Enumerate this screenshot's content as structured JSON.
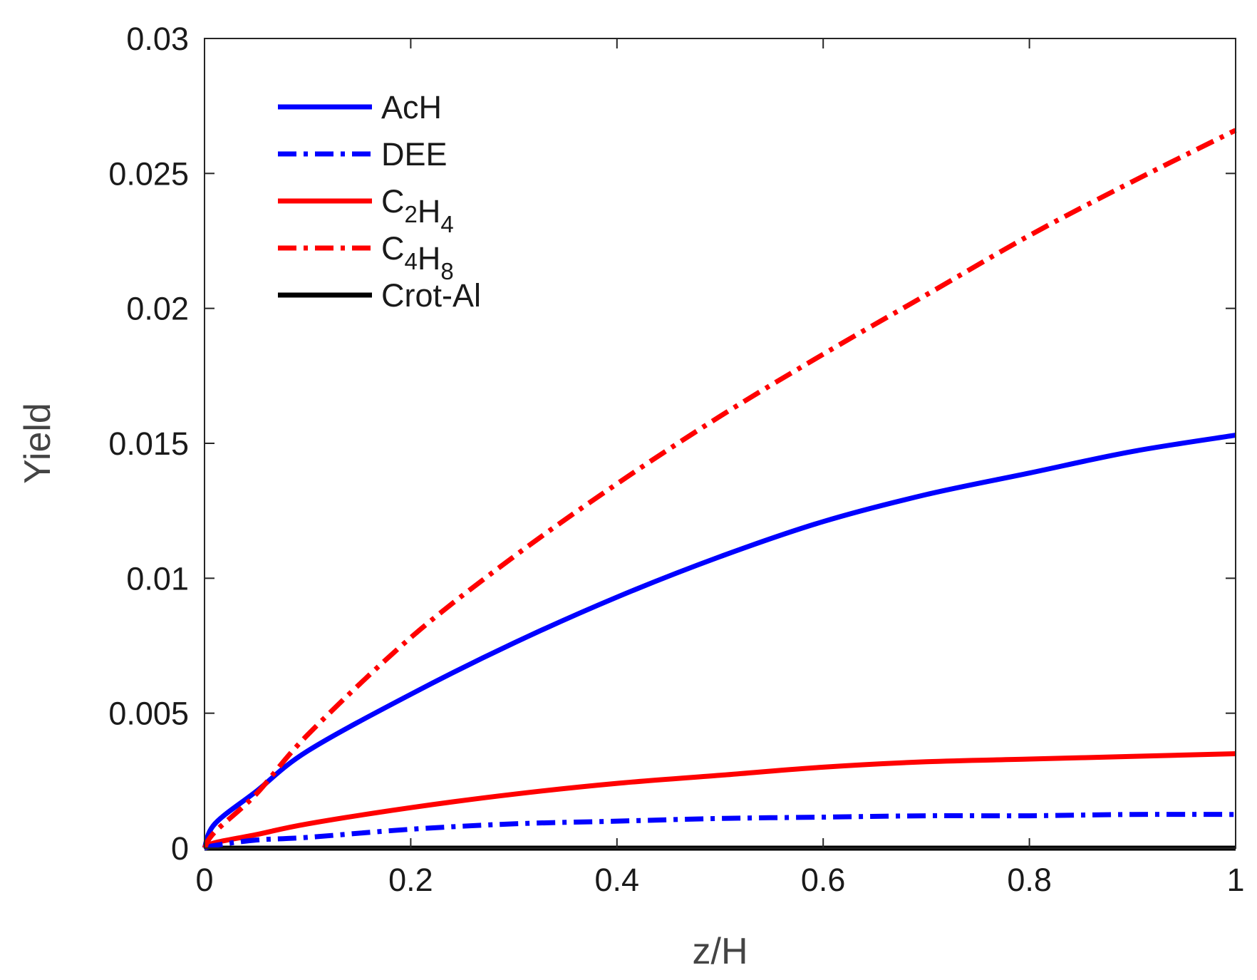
{
  "chart_data": {
    "type": "line",
    "xlabel": "z/H",
    "ylabel": "Yield",
    "xlim": [
      0,
      1
    ],
    "ylim": [
      0,
      0.03
    ],
    "xticks": [
      0,
      0.2,
      0.4,
      0.6,
      0.8,
      1
    ],
    "xtick_labels": [
      "0",
      "0.2",
      "0.4",
      "0.6",
      "0.8",
      "1"
    ],
    "yticks": [
      0,
      0.005,
      0.01,
      0.015,
      0.02,
      0.025,
      0.03
    ],
    "ytick_labels": [
      "0",
      "0.005",
      "0.01",
      "0.015",
      "0.02",
      "0.025",
      "0.03"
    ],
    "grid": false,
    "legend_position": "top-left",
    "x": [
      0,
      0.01,
      0.05,
      0.1,
      0.2,
      0.3,
      0.4,
      0.5,
      0.6,
      0.7,
      0.8,
      0.9,
      1.0
    ],
    "series": [
      {
        "name": "AcH",
        "legend_main": [
          "AcH"
        ],
        "legend_sub": [],
        "color": "#0000ff",
        "style": "solid",
        "values": [
          0,
          0.0009,
          0.0021,
          0.0036,
          0.0057,
          0.0076,
          0.0093,
          0.0108,
          0.0121,
          0.0131,
          0.0139,
          0.0147,
          0.0153
        ]
      },
      {
        "name": "DEE",
        "legend_main": [
          "DEE"
        ],
        "legend_sub": [],
        "color": "#0000ff",
        "style": "dashdot",
        "values": [
          0,
          0.0001,
          0.0003,
          0.0004,
          0.0007,
          0.0009,
          0.001,
          0.0011,
          0.00115,
          0.0012,
          0.0012,
          0.00125,
          0.00125
        ]
      },
      {
        "name": "C2H4",
        "legend_main": [
          "C",
          "H"
        ],
        "legend_sub": [
          "2",
          "4"
        ],
        "color": "#ff0000",
        "style": "solid",
        "values": [
          0,
          0.0002,
          0.0005,
          0.0009,
          0.0015,
          0.002,
          0.0024,
          0.0027,
          0.003,
          0.0032,
          0.0033,
          0.0034,
          0.0035
        ]
      },
      {
        "name": "C4H8",
        "legend_main": [
          "C",
          "H"
        ],
        "legend_sub": [
          "4",
          "8"
        ],
        "color": "#ff0000",
        "style": "dashdot",
        "values": [
          0,
          0.0006,
          0.002,
          0.0042,
          0.0078,
          0.0108,
          0.0135,
          0.016,
          0.0183,
          0.0205,
          0.0227,
          0.0247,
          0.0266
        ]
      },
      {
        "name": "Crot-Al",
        "legend_main": [
          "Crot-Al"
        ],
        "legend_sub": [],
        "color": "#000000",
        "style": "solid",
        "values": [
          0,
          0,
          0,
          0,
          0,
          0,
          0,
          0,
          0,
          0,
          0,
          0,
          0
        ]
      }
    ]
  }
}
